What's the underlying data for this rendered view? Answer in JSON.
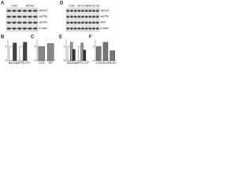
{
  "blots": [
    {
      "label": "A",
      "lanes": [
        "CON",
        "RR-NS"
      ],
      "rows": [
        "BACE1",
        "sAPPβ",
        "sAPPα",
        "β-Actin"
      ]
    },
    {
      "label": "D",
      "lanes": [
        "CON",
        "Rb-KI Ab",
        "Rb-KD Ab"
      ],
      "rows": [
        "BACE1",
        "sAPPβ",
        "APP",
        "β-Actin"
      ]
    }
  ],
  "charts": [
    {
      "label": "B",
      "type": "bar",
      "categories": [
        "BACE1",
        "sAPPβ-CTF"
      ],
      "series": [
        {
          "color": "#ffffff",
          "values": [
            1,
            1
          ]
        },
        {
          "color": "#444444",
          "values": [
            1.25,
            1.3
          ]
        }
      ],
      "ylim": [
        0,
        1.5
      ],
      "yticks": [
        0,
        1
      ]
    },
    {
      "label": "C",
      "type": "bar",
      "categories": [
        "CON",
        "RR"
      ],
      "series": [
        {
          "color": "#888888",
          "values": [
            1,
            1.2
          ]
        }
      ],
      "ylim": [
        0,
        1.5
      ],
      "yticks": [
        0,
        1
      ]
    },
    {
      "label": "E",
      "type": "bar",
      "categories": [
        "BACE1",
        "sAPPβ-CTF"
      ],
      "series": [
        {
          "color": "#ffffff",
          "values": [
            1,
            1
          ]
        },
        {
          "color": "#999999",
          "values": [
            1.3,
            1.25
          ]
        },
        {
          "color": "#333333",
          "values": [
            0.8,
            0.75
          ]
        }
      ],
      "ylim": [
        0,
        1.5
      ],
      "yticks": [
        0,
        1
      ]
    },
    {
      "label": "F",
      "type": "bar",
      "categories": [
        "CON",
        "Rb-KI",
        "Rb-KD"
      ],
      "series": [
        {
          "color": "#777777",
          "values": [
            1,
            1.3,
            0.7
          ]
        }
      ],
      "ylim": [
        0,
        1.5
      ],
      "yticks": [
        0,
        1
      ]
    }
  ]
}
